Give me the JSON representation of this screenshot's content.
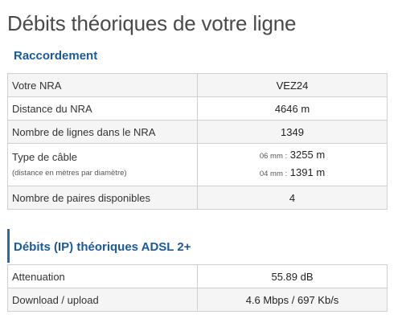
{
  "page": {
    "title": "Débits théoriques de votre ligne"
  },
  "raccordement": {
    "heading": "Raccordement",
    "rows": [
      {
        "label": "Votre NRA",
        "value": "VEZ24"
      },
      {
        "label": "Distance du NRA",
        "value": "4646 m"
      },
      {
        "label": "Nombre de lignes dans le NRA",
        "value": "1349"
      }
    ],
    "cable": {
      "label": "Type de câble",
      "sublabel": "(distance en mètres par diamètre)",
      "lines": [
        {
          "diameter": "06 mm :",
          "length": "3255 m"
        },
        {
          "diameter": "04 mm :",
          "length": "1391 m"
        }
      ]
    },
    "paires": {
      "label": "Nombre de paires disponibles",
      "value": "4"
    }
  },
  "adsl": {
    "heading": "Débits (IP) théoriques ADSL 2+",
    "rows": [
      {
        "label": "Attenuation",
        "value": "55.89 dB"
      },
      {
        "label": "Download / upload",
        "value": "4.6 Mbps / 697 Kb/s"
      }
    ]
  }
}
